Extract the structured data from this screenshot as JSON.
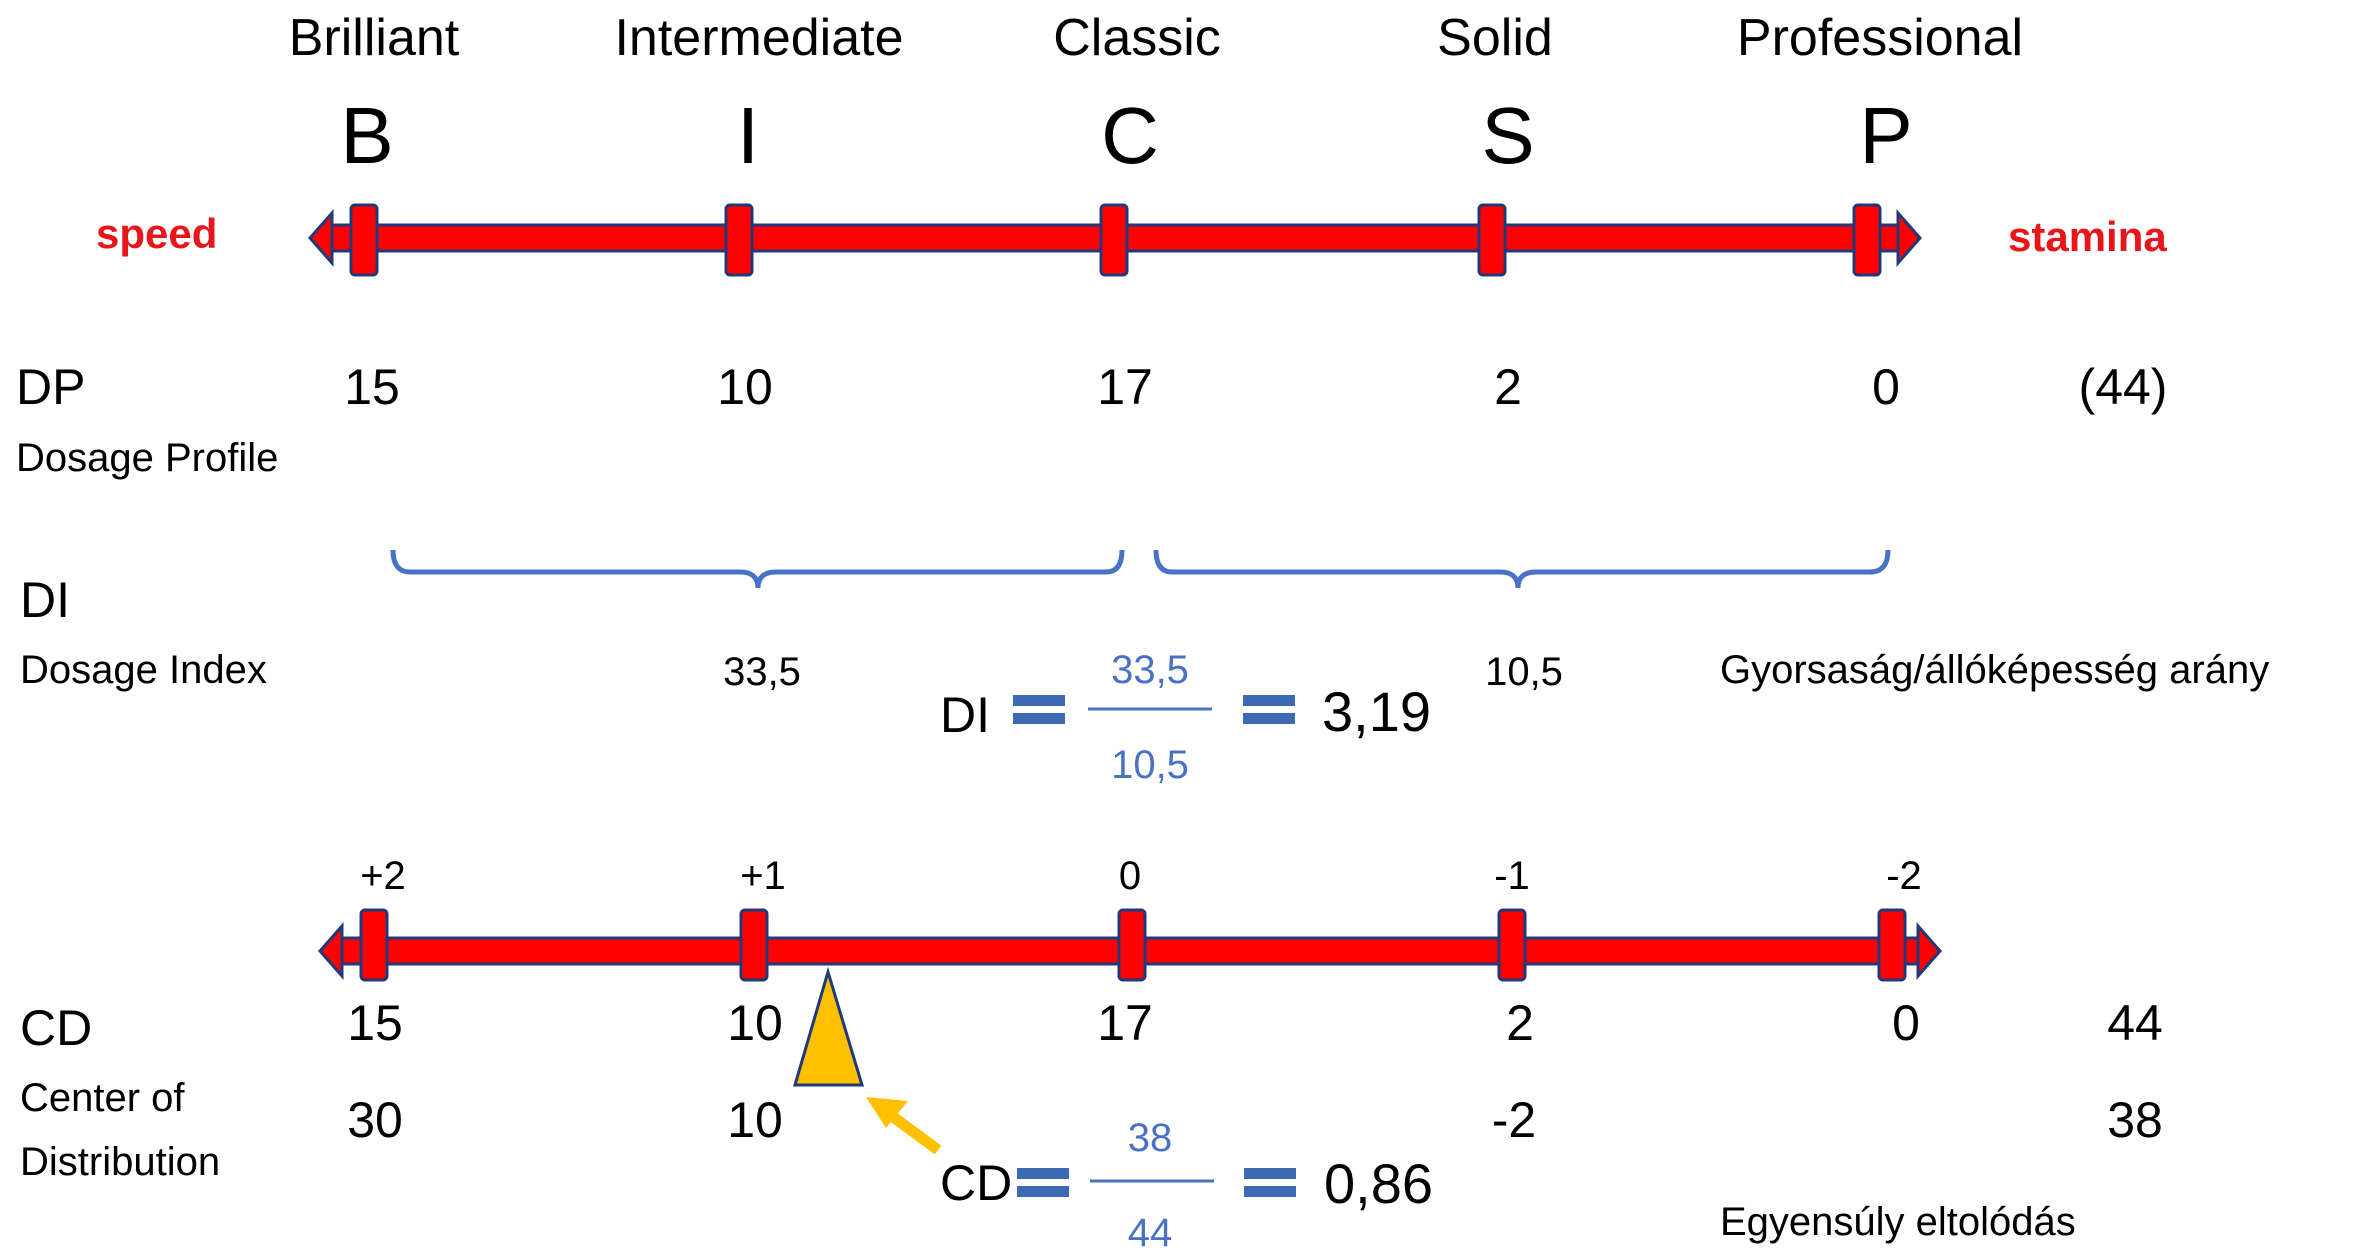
{
  "scale": {
    "categories": [
      {
        "name": "Brilliant",
        "letter": "B"
      },
      {
        "name": "Intermediate",
        "letter": "I"
      },
      {
        "name": "Classic",
        "letter": "C"
      },
      {
        "name": "Solid",
        "letter": "S"
      },
      {
        "name": "Professional",
        "letter": "P"
      }
    ],
    "left_label": "speed",
    "right_label": "stamina"
  },
  "dp": {
    "abbr": "DP",
    "full": "Dosage Profile",
    "values": [
      "15",
      "10",
      "17",
      "2",
      "0"
    ],
    "total": "(44)"
  },
  "di": {
    "abbr": "DI",
    "full": "Dosage Index",
    "left_sum": "33,5",
    "right_sum": "10,5",
    "ratio_label": "Gyorsaság/állóképesség arány",
    "formula": {
      "label": "DI",
      "numerator": "33,5",
      "denominator": "10,5",
      "result": "3,19"
    }
  },
  "cd": {
    "abbr": "CD",
    "full_line1": "Center of",
    "full_line2": "Distribution",
    "weights": [
      "+2",
      "+1",
      "0",
      "-1",
      "-2"
    ],
    "values": [
      "15",
      "10",
      "17",
      "2",
      "0"
    ],
    "total": "44",
    "weighted": [
      "30",
      "10",
      "-2"
    ],
    "weighted_total": "38",
    "shift_label": "Egyensúly eltolódás",
    "formula": {
      "label": "CD",
      "numerator": "38",
      "denominator": "44",
      "result": "0,86"
    }
  },
  "colors": {
    "axis_red": "#ff0000",
    "axis_outline": "#1f3a7a",
    "bracket_blue": "#4a72c4",
    "equals_blue": "#3d6ab3",
    "marker_gold": "#ffc000",
    "label_red": "#e8161b"
  }
}
